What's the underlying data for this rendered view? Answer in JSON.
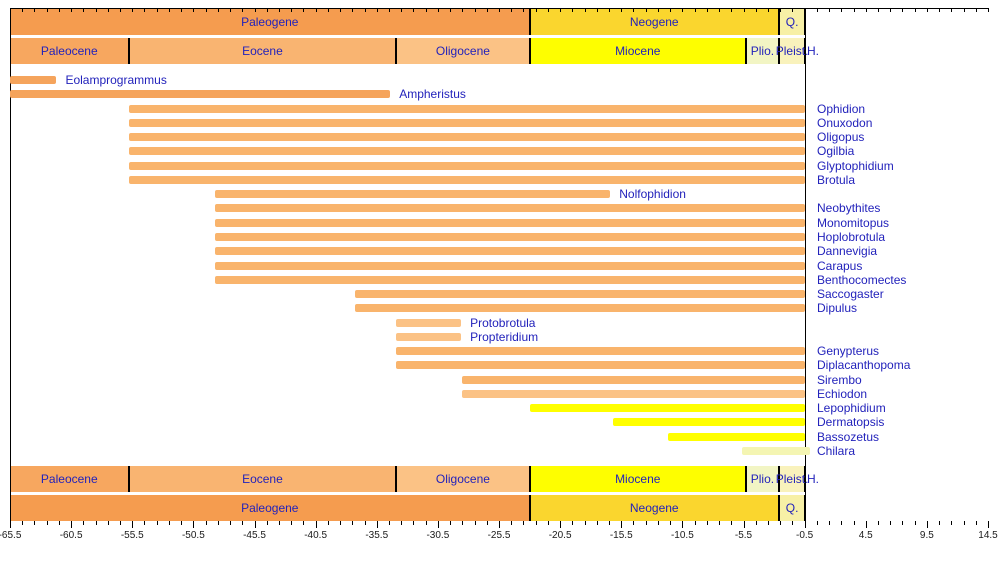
{
  "colors": {
    "background": "#FFFFFF",
    "frame": "#000000",
    "label_text": "#2222BB",
    "axis_text": "#1A1A1A"
  },
  "chart_data": {
    "type": "bar",
    "subtype": "stratigraphic-range-chart",
    "title": "",
    "xlabel": "",
    "ylabel": "",
    "xlim": [
      -65.5,
      14.5
    ],
    "x_major_step": 5,
    "x_minor_step": 1,
    "grid": "off",
    "tick_labels": [
      "-65.5",
      "-60.5",
      "-55.5",
      "-50.5",
      "-45.5",
      "-40.5",
      "-35.5",
      "-30.5",
      "-25.5",
      "-20.5",
      "-15.5",
      "-10.5",
      "-5.5",
      "-0.5",
      "4.5",
      "9.5",
      "14.5"
    ],
    "holocene_label": "H.",
    "periods": [
      {
        "label": "Paleogene",
        "start": -65.5,
        "end": -23.0,
        "color": "#F59C4F"
      },
      {
        "label": "Neogene",
        "start": -23.0,
        "end": -2.6,
        "color": "#FAD62E"
      },
      {
        "label": "Q.",
        "start": -2.6,
        "end": -0.45,
        "color": "#F7F0A6"
      }
    ],
    "epochs": [
      {
        "label": "Paleocene",
        "start": -65.5,
        "end": -55.8,
        "color": "#F7A75F"
      },
      {
        "label": "Eocene",
        "start": -55.8,
        "end": -33.9,
        "color": "#F9B471"
      },
      {
        "label": "Oligocene",
        "start": -33.9,
        "end": -23.0,
        "color": "#FBC285"
      },
      {
        "label": "Miocene",
        "start": -23.0,
        "end": -5.3,
        "color": "#FEFE00"
      },
      {
        "label": "Plio.",
        "start": -5.3,
        "end": -2.6,
        "color": "#F2F5C4"
      },
      {
        "label": "Pleist.",
        "start": -2.6,
        "end": -0.45,
        "color": "#F9F2BC"
      }
    ],
    "genera": [
      {
        "name": "Eolamprogrammus",
        "start": -65.5,
        "end": -61.7,
        "color": "#F5A45C",
        "label_pos": "end"
      },
      {
        "name": "Ampheristus",
        "start": -65.5,
        "end": -34.4,
        "color": "#F5A45C",
        "label_pos": "end"
      },
      {
        "name": "Ophidion",
        "start": -55.8,
        "end": -0.45,
        "color": "#F9B46C",
        "label_pos": "right"
      },
      {
        "name": "Onuxodon",
        "start": -55.8,
        "end": -0.45,
        "color": "#F9B46C",
        "label_pos": "right"
      },
      {
        "name": "Oligopus",
        "start": -55.8,
        "end": -0.45,
        "color": "#F9B46C",
        "label_pos": "right"
      },
      {
        "name": "Ogilbia",
        "start": -55.8,
        "end": -0.45,
        "color": "#F9B46C",
        "label_pos": "right"
      },
      {
        "name": "Glyptophidium",
        "start": -55.8,
        "end": -0.45,
        "color": "#F9B46C",
        "label_pos": "right"
      },
      {
        "name": "Brotula",
        "start": -55.8,
        "end": -0.45,
        "color": "#F9B46C",
        "label_pos": "right"
      },
      {
        "name": "Nolfophidion",
        "start": -48.7,
        "end": -16.4,
        "color": "#F9B46C",
        "label_pos": "end"
      },
      {
        "name": "Neobythites",
        "start": -48.7,
        "end": -0.45,
        "color": "#F9B46C",
        "label_pos": "right"
      },
      {
        "name": "Monomitopus",
        "start": -48.7,
        "end": -0.45,
        "color": "#F9B46C",
        "label_pos": "right"
      },
      {
        "name": "Hoplobrotula",
        "start": -48.7,
        "end": -0.45,
        "color": "#F9B46C",
        "label_pos": "right"
      },
      {
        "name": "Dannevigia",
        "start": -48.7,
        "end": -0.45,
        "color": "#F9B46C",
        "label_pos": "right"
      },
      {
        "name": "Carapus",
        "start": -48.7,
        "end": -0.45,
        "color": "#F9B46C",
        "label_pos": "right"
      },
      {
        "name": "Benthocomectes",
        "start": -48.7,
        "end": -0.45,
        "color": "#F9B46C",
        "label_pos": "right"
      },
      {
        "name": "Saccogaster",
        "start": -37.3,
        "end": -0.45,
        "color": "#F9B46C",
        "label_pos": "right"
      },
      {
        "name": "Dipulus",
        "start": -37.3,
        "end": -0.45,
        "color": "#F9B46C",
        "label_pos": "right"
      },
      {
        "name": "Protobrotula",
        "start": -33.9,
        "end": -28.6,
        "color": "#FBC285",
        "label_pos": "end"
      },
      {
        "name": "Propteridium",
        "start": -33.9,
        "end": -28.6,
        "color": "#FBC285",
        "label_pos": "end"
      },
      {
        "name": "Genypterus",
        "start": -33.9,
        "end": -0.45,
        "color": "#F9B46C",
        "label_pos": "right"
      },
      {
        "name": "Diplacanthopoma",
        "start": -33.9,
        "end": -0.45,
        "color": "#F9B46C",
        "label_pos": "right"
      },
      {
        "name": "Sirembo",
        "start": -28.5,
        "end": -0.45,
        "color": "#F9B46C",
        "label_pos": "right"
      },
      {
        "name": "Echiodon",
        "start": -28.5,
        "end": -0.45,
        "color": "#FBC285",
        "label_pos": "right"
      },
      {
        "name": "Lepophidium",
        "start": -23.0,
        "end": -0.45,
        "color": "#FFFF00",
        "label_pos": "right"
      },
      {
        "name": "Dermatopsis",
        "start": -16.2,
        "end": -0.45,
        "color": "#FFFF00",
        "label_pos": "right"
      },
      {
        "name": "Bassozetus",
        "start": -11.7,
        "end": -0.45,
        "color": "#FFFF00",
        "label_pos": "right"
      },
      {
        "name": "Chilara",
        "start": -5.6,
        "end": -0.1,
        "color": "#F4F5B2",
        "label_pos": "right"
      }
    ]
  },
  "layout_note_values": {
    "right_label_x_ma": -0.5
  }
}
